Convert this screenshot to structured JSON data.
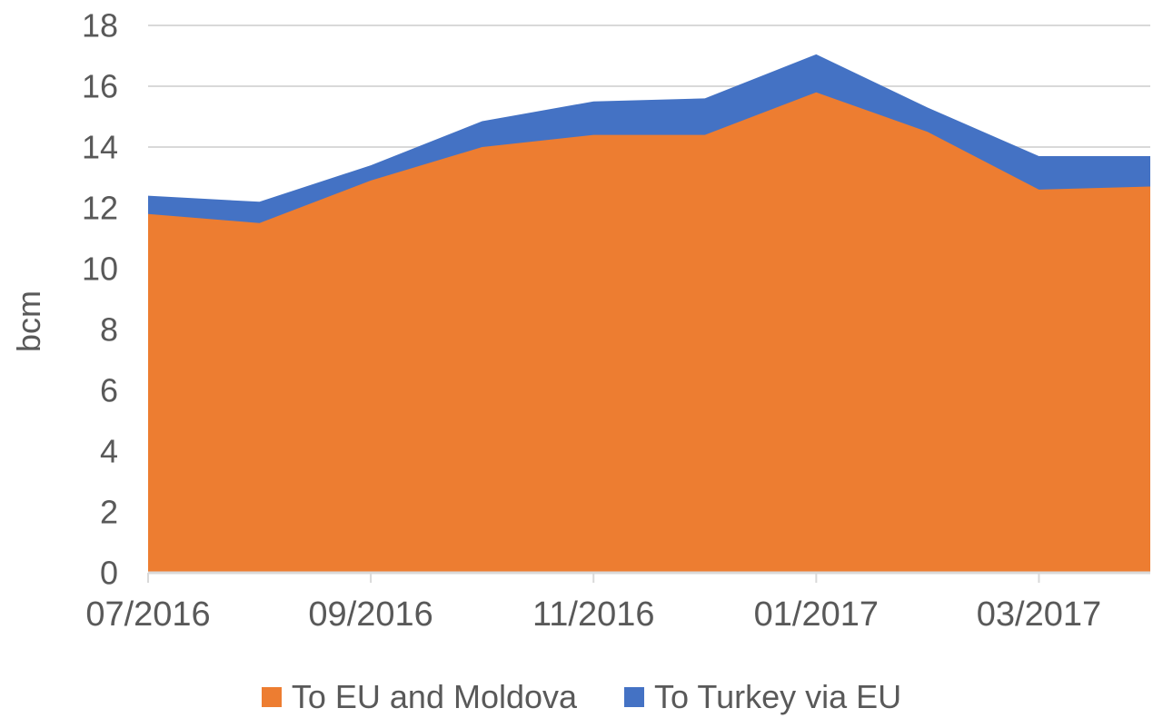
{
  "colors": {
    "series_orange": "#ED7D31",
    "series_blue": "#4472C4",
    "text": "#595959",
    "gridline": "#D9D9D9",
    "axis": "#D9D9D9"
  },
  "chart_data": {
    "type": "area",
    "stacked": true,
    "title": "",
    "xlabel": "",
    "ylabel": "bcm",
    "ylim": [
      0,
      18
    ],
    "y_ticks": [
      0,
      2,
      4,
      6,
      8,
      10,
      12,
      14,
      16,
      18
    ],
    "grid": true,
    "legend_position": "bottom",
    "x": [
      "07/2016",
      "08/2016",
      "09/2016",
      "10/2016",
      "11/2016",
      "12/2016",
      "01/2017",
      "02/2017",
      "03/2017",
      "04/2017"
    ],
    "x_tick_indices": [
      0,
      2,
      4,
      6,
      8
    ],
    "x_tick_labels": [
      "07/2016",
      "09/2016",
      "11/2016",
      "01/2017",
      "03/2017"
    ],
    "series": [
      {
        "name": "To EU and Moldova",
        "color": "#ED7D31",
        "values": [
          11.8,
          11.5,
          12.9,
          14.0,
          14.4,
          14.4,
          15.8,
          14.5,
          12.6,
          12.7
        ]
      },
      {
        "name": "To Turkey via EU",
        "color": "#4472C4",
        "values": [
          0.6,
          0.7,
          0.5,
          0.85,
          1.1,
          1.2,
          1.25,
          0.8,
          1.1,
          1.0
        ]
      }
    ],
    "stacked_totals": [
      12.4,
      12.2,
      13.4,
      14.85,
      15.5,
      15.6,
      17.05,
      15.3,
      13.7,
      13.7
    ]
  }
}
